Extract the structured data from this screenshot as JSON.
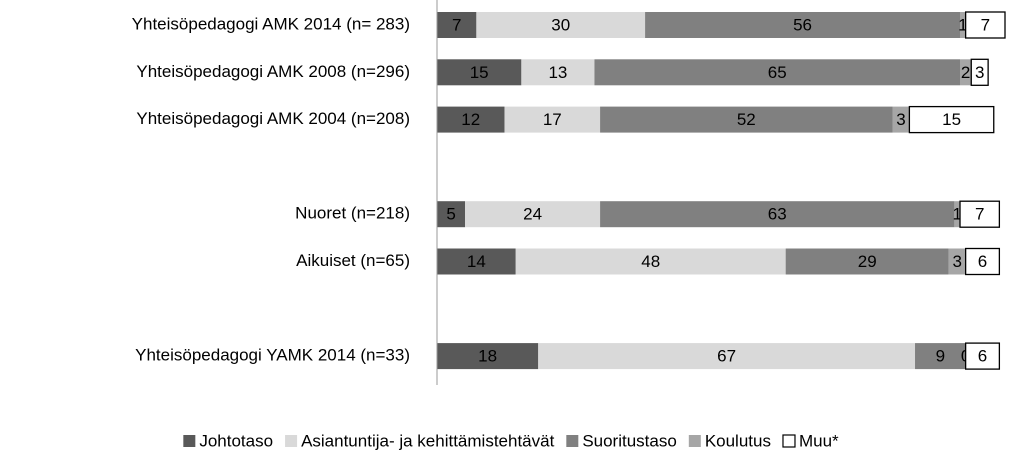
{
  "chart_data": {
    "type": "bar",
    "orientation": "horizontal",
    "stacked": true,
    "categories": [
      "Yhteisöpedagogi AMK 2014 (n= 283)",
      "Yhteisöpedagogi AMK 2008 (n=296)",
      "Yhteisöpedagogi AMK 2004 (n=208)",
      null,
      "Nuoret (n=218)",
      "Aikuiset (n=65)",
      null,
      "Yhteisöpedagogi YAMK 2014 (n=33)"
    ],
    "series": [
      {
        "name": "Johtotaso",
        "color": "#595959",
        "values": [
          7,
          15,
          12,
          null,
          5,
          14,
          null,
          18
        ]
      },
      {
        "name": "Asiantuntija- ja kehittämistehtävät",
        "color": "#d9d9d9",
        "values": [
          30,
          13,
          17,
          null,
          24,
          48,
          null,
          67
        ]
      },
      {
        "name": "Suoritustaso",
        "color": "#808080",
        "values": [
          56,
          65,
          52,
          null,
          63,
          29,
          null,
          9
        ]
      },
      {
        "name": "Koulutus",
        "color": "#a6a6a6",
        "values": [
          1,
          2,
          3,
          null,
          1,
          3,
          null,
          0
        ]
      },
      {
        "name": "Muu*",
        "color": "#ffffff",
        "values": [
          7,
          3,
          15,
          null,
          7,
          6,
          null,
          6
        ]
      }
    ],
    "legend": "bottom"
  }
}
